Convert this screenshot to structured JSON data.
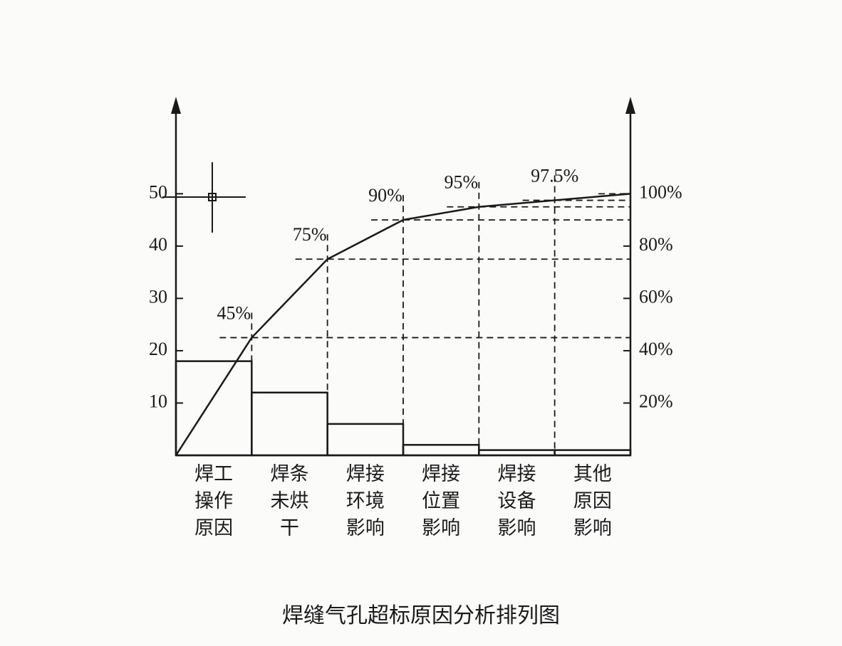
{
  "chart_data": {
    "type": "pareto",
    "title": "焊缝气孔超标原因分析排列图",
    "categories": [
      "焊工\n操作\n原因",
      "焊条\n未烘\n干",
      "焊接\n环境\n影响",
      "焊接\n位置\n影响",
      "焊接\n设备\n影响",
      "其他\n原因\n影响"
    ],
    "series": [
      {
        "color": "#1a1a1a",
        "values": [
          18,
          12,
          6,
          2,
          1,
          1
        ]
      },
      {
        "color": "#1a1a1a",
        "axis": "y2",
        "values": [
          45,
          75,
          90,
          95,
          97.5,
          100
        ],
        "value_labels": [
          "45%",
          "75%",
          "90%",
          "95%",
          "97.5%",
          null
        ]
      }
    ],
    "ylim": [
      0,
      68
    ],
    "yticks": [
      10,
      20,
      30,
      40,
      50
    ],
    "y2lim": [
      0,
      136
    ],
    "y2ticks": [
      {
        "value": 20,
        "label": "20%"
      },
      {
        "value": 40,
        "label": "40%"
      },
      {
        "value": 60,
        "label": "60%"
      },
      {
        "value": 80,
        "label": "80%"
      },
      {
        "value": 100,
        "label": "100%"
      }
    ]
  }
}
